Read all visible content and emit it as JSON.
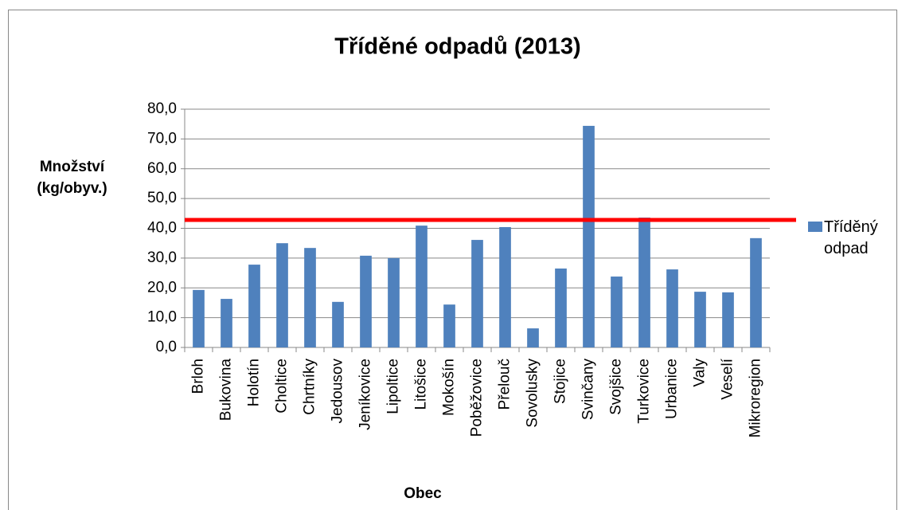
{
  "chart_data": {
    "type": "bar",
    "title": "Tříděné odpadů (2013)",
    "x_label": "Obec",
    "y_label": "Množství (kg/obyv.)",
    "categories": [
      "Brloh",
      "Bukovina",
      "Holotín",
      "Choltice",
      "Chrtníky",
      "Jedousov",
      "Jeníkovice",
      "Lipoltice",
      "Litošice",
      "Mokošín",
      "Poběžovice",
      "Přelouč",
      "Sovolusky",
      "Stojice",
      "Svinčany",
      "Svojšice",
      "Turkovice",
      "Urbanice",
      "Valy",
      "Veselí",
      "Mikroregion"
    ],
    "series": [
      {
        "name": "Tříděný odpad",
        "color": "#4f81bd",
        "values": [
          19.3,
          16.3,
          27.8,
          35.0,
          33.4,
          15.3,
          30.8,
          30.0,
          40.9,
          14.4,
          36.1,
          40.4,
          6.4,
          26.5,
          74.4,
          23.8,
          43.6,
          26.2,
          18.7,
          18.5,
          36.7
        ]
      }
    ],
    "reference_line": {
      "value": 42.8,
      "color": "#ff0000"
    },
    "ylim": [
      0,
      80
    ],
    "yticks": [
      {
        "value": 0,
        "label": "0,0"
      },
      {
        "value": 10,
        "label": "10,0"
      },
      {
        "value": 20,
        "label": "20,0"
      },
      {
        "value": 30,
        "label": "30,0"
      },
      {
        "value": 40,
        "label": "40,0"
      },
      {
        "value": 50,
        "label": "50,0"
      },
      {
        "value": 60,
        "label": "60,0"
      },
      {
        "value": 70,
        "label": "70,0"
      },
      {
        "value": 80,
        "label": "80,0"
      }
    ],
    "grid": true,
    "legend": "right"
  }
}
